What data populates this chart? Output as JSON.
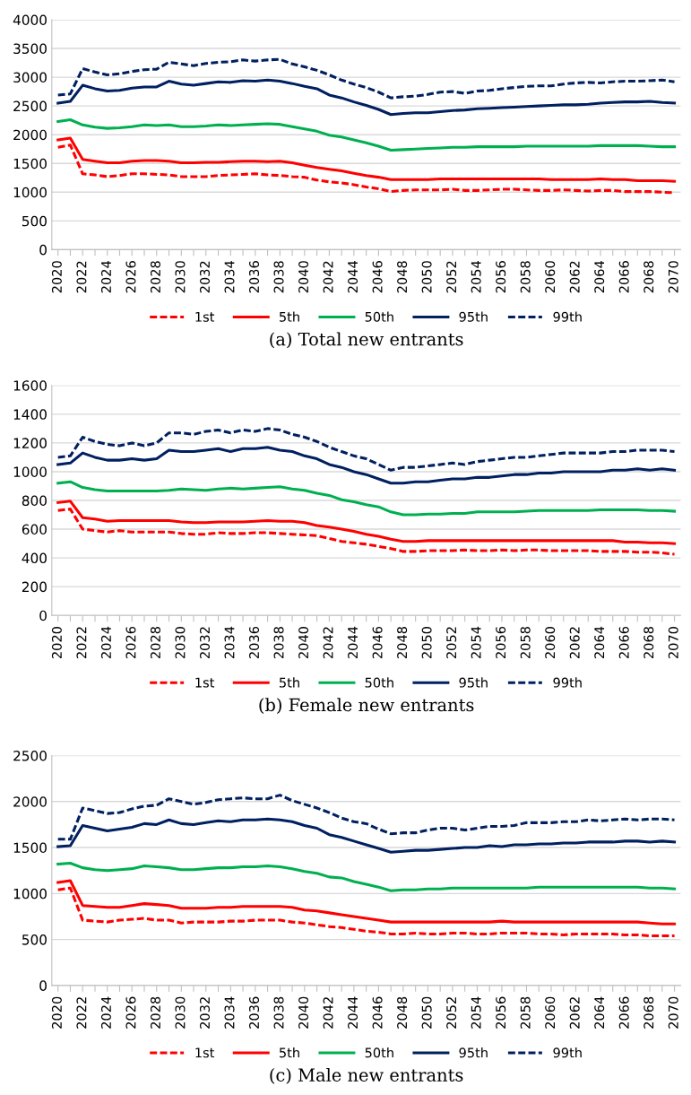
{
  "chart_data": [
    {
      "type": "line",
      "title": "(a) Total new entrants",
      "categories": [
        "2020",
        null,
        "2022",
        null,
        "2024",
        null,
        "2026",
        null,
        "2028",
        null,
        "2030",
        null,
        "2032",
        null,
        "2034",
        null,
        "2036",
        null,
        "2038",
        null,
        "2040",
        null,
        "2042",
        null,
        "2044",
        null,
        "2046",
        null,
        "2048",
        null,
        "2050",
        null,
        "2052",
        null,
        "2054",
        null,
        "2056",
        null,
        "2058",
        null,
        "2060",
        null,
        "2062",
        null,
        "2064",
        null,
        "2066",
        null,
        "2068",
        null,
        "2070"
      ],
      "ylim": [
        0,
        4000
      ],
      "yticks": [
        0,
        500,
        1000,
        1500,
        2000,
        2500,
        3000,
        3500,
        4000
      ],
      "grid": "y",
      "legend": "bottom",
      "marker": "none",
      "series": [
        {
          "name": "1st",
          "color": "#ff0000",
          "line_style": "dashed",
          "values": [
            1780,
            1820,
            1320,
            1300,
            1270,
            1290,
            1320,
            1320,
            1310,
            1300,
            1270,
            1270,
            1270,
            1290,
            1300,
            1310,
            1320,
            1300,
            1290,
            1270,
            1260,
            1210,
            1180,
            1160,
            1130,
            1090,
            1060,
            1010,
            1030,
            1040,
            1040,
            1040,
            1050,
            1030,
            1030,
            1040,
            1050,
            1050,
            1040,
            1030,
            1030,
            1040,
            1030,
            1020,
            1030,
            1030,
            1010,
            1010,
            1010,
            1000,
            990
          ]
        },
        {
          "name": "5th",
          "color": "#ff0000",
          "line_style": "solid",
          "values": [
            1910,
            1940,
            1570,
            1540,
            1510,
            1510,
            1540,
            1550,
            1550,
            1540,
            1510,
            1510,
            1520,
            1520,
            1530,
            1540,
            1540,
            1530,
            1540,
            1510,
            1470,
            1430,
            1400,
            1370,
            1330,
            1290,
            1260,
            1220,
            1220,
            1220,
            1220,
            1230,
            1230,
            1230,
            1230,
            1230,
            1230,
            1230,
            1230,
            1230,
            1220,
            1220,
            1220,
            1220,
            1230,
            1220,
            1220,
            1200,
            1200,
            1200,
            1190
          ]
        },
        {
          "name": "50th",
          "color": "#00b050",
          "line_style": "solid",
          "values": [
            2230,
            2260,
            2170,
            2130,
            2110,
            2120,
            2140,
            2170,
            2160,
            2170,
            2140,
            2140,
            2150,
            2170,
            2160,
            2170,
            2180,
            2190,
            2180,
            2140,
            2100,
            2060,
            1990,
            1960,
            1910,
            1860,
            1800,
            1730,
            1740,
            1750,
            1760,
            1770,
            1780,
            1780,
            1790,
            1790,
            1790,
            1790,
            1800,
            1800,
            1800,
            1800,
            1800,
            1800,
            1810,
            1810,
            1810,
            1810,
            1800,
            1790,
            1790
          ]
        },
        {
          "name": "95th",
          "color": "#002060",
          "line_style": "solid",
          "values": [
            2550,
            2580,
            2860,
            2800,
            2760,
            2770,
            2810,
            2830,
            2830,
            2930,
            2880,
            2860,
            2890,
            2920,
            2910,
            2940,
            2930,
            2950,
            2930,
            2890,
            2840,
            2800,
            2690,
            2640,
            2570,
            2510,
            2440,
            2350,
            2370,
            2380,
            2380,
            2400,
            2420,
            2430,
            2450,
            2460,
            2470,
            2480,
            2490,
            2500,
            2510,
            2520,
            2520,
            2530,
            2550,
            2560,
            2570,
            2570,
            2580,
            2560,
            2550
          ]
        },
        {
          "name": "99th",
          "color": "#002060",
          "line_style": "dashed",
          "values": [
            2690,
            2710,
            3150,
            3090,
            3040,
            3060,
            3100,
            3130,
            3140,
            3260,
            3230,
            3200,
            3240,
            3260,
            3270,
            3300,
            3280,
            3300,
            3310,
            3230,
            3180,
            3120,
            3040,
            2950,
            2880,
            2820,
            2740,
            2640,
            2660,
            2670,
            2700,
            2740,
            2750,
            2720,
            2760,
            2770,
            2800,
            2820,
            2840,
            2850,
            2850,
            2880,
            2900,
            2910,
            2900,
            2920,
            2930,
            2930,
            2940,
            2950,
            2920
          ]
        }
      ]
    },
    {
      "type": "line",
      "title": "(b) Female new entrants",
      "categories": [
        "2020",
        null,
        "2022",
        null,
        "2024",
        null,
        "2026",
        null,
        "2028",
        null,
        "2030",
        null,
        "2032",
        null,
        "2034",
        null,
        "2036",
        null,
        "2038",
        null,
        "2040",
        null,
        "2042",
        null,
        "2044",
        null,
        "2046",
        null,
        "2048",
        null,
        "2050",
        null,
        "2052",
        null,
        "2054",
        null,
        "2056",
        null,
        "2058",
        null,
        "2060",
        null,
        "2062",
        null,
        "2064",
        null,
        "2066",
        null,
        "2068",
        null,
        "2070"
      ],
      "ylim": [
        0,
        1600
      ],
      "yticks": [
        0,
        200,
        400,
        600,
        800,
        1000,
        1200,
        1400,
        1600
      ],
      "grid": "y",
      "legend": "bottom",
      "marker": "none",
      "series": [
        {
          "name": "1st",
          "color": "#ff0000",
          "line_style": "dashed",
          "values": [
            730,
            740,
            600,
            590,
            580,
            590,
            580,
            580,
            580,
            580,
            570,
            565,
            565,
            575,
            570,
            570,
            575,
            575,
            570,
            565,
            560,
            555,
            535,
            515,
            505,
            495,
            480,
            465,
            445,
            445,
            450,
            450,
            450,
            455,
            450,
            450,
            455,
            450,
            455,
            455,
            450,
            450,
            450,
            450,
            445,
            445,
            445,
            440,
            440,
            435,
            425
          ]
        },
        {
          "name": "5th",
          "color": "#ff0000",
          "line_style": "solid",
          "values": [
            785,
            795,
            680,
            670,
            655,
            660,
            660,
            660,
            660,
            660,
            650,
            645,
            645,
            650,
            650,
            650,
            655,
            660,
            655,
            655,
            645,
            625,
            615,
            600,
            585,
            565,
            550,
            530,
            515,
            515,
            520,
            520,
            520,
            520,
            520,
            520,
            520,
            520,
            520,
            520,
            520,
            520,
            520,
            520,
            520,
            520,
            510,
            510,
            505,
            505,
            500
          ]
        },
        {
          "name": "50th",
          "color": "#00b050",
          "line_style": "solid",
          "values": [
            920,
            930,
            890,
            875,
            865,
            865,
            865,
            865,
            865,
            870,
            880,
            875,
            870,
            880,
            885,
            880,
            885,
            890,
            895,
            880,
            870,
            850,
            835,
            805,
            790,
            770,
            755,
            720,
            700,
            700,
            705,
            705,
            710,
            710,
            720,
            720,
            720,
            720,
            725,
            730,
            730,
            730,
            730,
            730,
            735,
            735,
            735,
            735,
            730,
            730,
            725
          ]
        },
        {
          "name": "95th",
          "color": "#002060",
          "line_style": "solid",
          "values": [
            1050,
            1060,
            1130,
            1100,
            1080,
            1080,
            1090,
            1080,
            1090,
            1150,
            1140,
            1140,
            1150,
            1160,
            1140,
            1160,
            1160,
            1170,
            1150,
            1140,
            1110,
            1090,
            1050,
            1030,
            1000,
            980,
            950,
            920,
            920,
            930,
            930,
            940,
            950,
            950,
            960,
            960,
            970,
            980,
            980,
            990,
            990,
            1000,
            1000,
            1000,
            1000,
            1010,
            1010,
            1020,
            1010,
            1020,
            1010
          ]
        },
        {
          "name": "99th",
          "color": "#002060",
          "line_style": "dashed",
          "values": [
            1100,
            1110,
            1240,
            1210,
            1190,
            1180,
            1200,
            1180,
            1200,
            1270,
            1270,
            1260,
            1280,
            1290,
            1270,
            1290,
            1280,
            1300,
            1290,
            1260,
            1240,
            1210,
            1170,
            1140,
            1110,
            1090,
            1050,
            1010,
            1030,
            1030,
            1040,
            1050,
            1060,
            1050,
            1070,
            1080,
            1090,
            1100,
            1100,
            1110,
            1120,
            1130,
            1130,
            1130,
            1130,
            1140,
            1140,
            1150,
            1150,
            1150,
            1140
          ]
        }
      ]
    },
    {
      "type": "line",
      "title": "(c) Male new entrants",
      "categories": [
        "2020",
        null,
        "2022",
        null,
        "2024",
        null,
        "2026",
        null,
        "2028",
        null,
        "2030",
        null,
        "2032",
        null,
        "2034",
        null,
        "2036",
        null,
        "2038",
        null,
        "2040",
        null,
        "2042",
        null,
        "2044",
        null,
        "2046",
        null,
        "2048",
        null,
        "2050",
        null,
        "2052",
        null,
        "2054",
        null,
        "2056",
        null,
        "2058",
        null,
        "2060",
        null,
        "2062",
        null,
        "2064",
        null,
        "2066",
        null,
        "2068",
        null,
        "2070"
      ],
      "ylim": [
        0,
        2500
      ],
      "yticks": [
        0,
        500,
        1000,
        1500,
        2000,
        2500
      ],
      "grid": "y",
      "legend": "bottom",
      "marker": "none",
      "series": [
        {
          "name": "1st",
          "color": "#ff0000",
          "line_style": "dashed",
          "values": [
            1040,
            1060,
            710,
            700,
            690,
            710,
            720,
            730,
            710,
            710,
            680,
            690,
            690,
            690,
            700,
            700,
            710,
            710,
            710,
            690,
            680,
            660,
            640,
            630,
            610,
            590,
            580,
            560,
            560,
            570,
            560,
            560,
            570,
            570,
            560,
            560,
            570,
            570,
            570,
            560,
            560,
            550,
            560,
            560,
            560,
            560,
            550,
            550,
            540,
            540,
            540
          ]
        },
        {
          "name": "5th",
          "color": "#ff0000",
          "line_style": "solid",
          "values": [
            1120,
            1140,
            870,
            860,
            850,
            850,
            870,
            890,
            880,
            870,
            840,
            840,
            840,
            850,
            850,
            860,
            860,
            860,
            860,
            850,
            820,
            810,
            790,
            770,
            750,
            730,
            710,
            690,
            690,
            690,
            690,
            690,
            690,
            690,
            690,
            690,
            700,
            690,
            690,
            690,
            690,
            690,
            690,
            690,
            690,
            690,
            690,
            690,
            680,
            670,
            670
          ]
        },
        {
          "name": "50th",
          "color": "#00b050",
          "line_style": "solid",
          "values": [
            1320,
            1330,
            1280,
            1260,
            1250,
            1260,
            1270,
            1300,
            1290,
            1280,
            1260,
            1260,
            1270,
            1280,
            1280,
            1290,
            1290,
            1300,
            1290,
            1270,
            1240,
            1220,
            1180,
            1170,
            1130,
            1100,
            1070,
            1030,
            1040,
            1040,
            1050,
            1050,
            1060,
            1060,
            1060,
            1060,
            1060,
            1060,
            1060,
            1070,
            1070,
            1070,
            1070,
            1070,
            1070,
            1070,
            1070,
            1070,
            1060,
            1060,
            1050
          ]
        },
        {
          "name": "95th",
          "color": "#002060",
          "line_style": "solid",
          "values": [
            1510,
            1520,
            1740,
            1710,
            1680,
            1700,
            1720,
            1760,
            1750,
            1800,
            1760,
            1750,
            1770,
            1790,
            1780,
            1800,
            1800,
            1810,
            1800,
            1780,
            1740,
            1710,
            1640,
            1610,
            1570,
            1530,
            1490,
            1450,
            1460,
            1470,
            1470,
            1480,
            1490,
            1500,
            1500,
            1520,
            1510,
            1530,
            1530,
            1540,
            1540,
            1550,
            1550,
            1560,
            1560,
            1560,
            1570,
            1570,
            1560,
            1570,
            1560
          ]
        },
        {
          "name": "99th",
          "color": "#002060",
          "line_style": "dashed",
          "values": [
            1590,
            1590,
            1930,
            1900,
            1870,
            1880,
            1920,
            1950,
            1960,
            2030,
            2000,
            1970,
            1990,
            2020,
            2030,
            2040,
            2030,
            2030,
            2070,
            2010,
            1970,
            1930,
            1880,
            1820,
            1780,
            1760,
            1700,
            1650,
            1660,
            1660,
            1690,
            1710,
            1710,
            1690,
            1710,
            1730,
            1730,
            1740,
            1770,
            1770,
            1770,
            1780,
            1780,
            1800,
            1790,
            1800,
            1810,
            1800,
            1810,
            1810,
            1800
          ]
        }
      ]
    }
  ]
}
